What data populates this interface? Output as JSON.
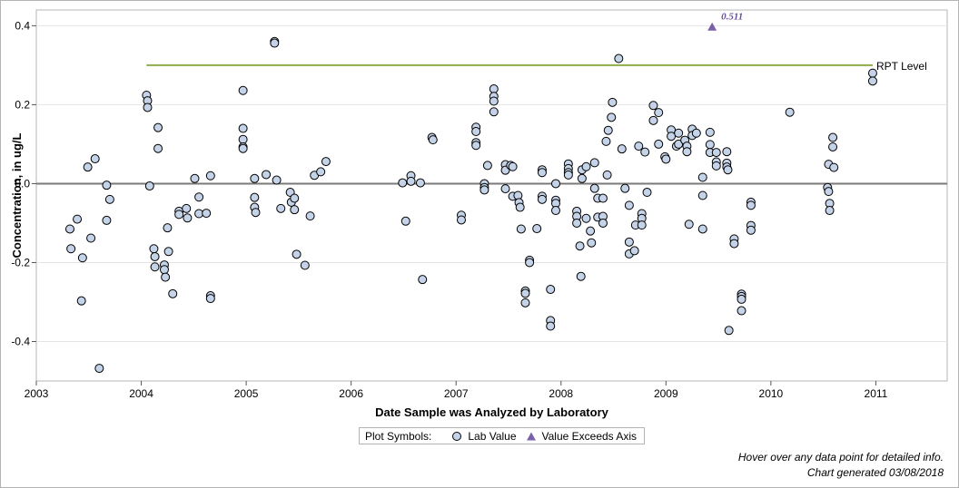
{
  "chart_data": {
    "type": "scatter",
    "title": "",
    "xlabel": "Date Sample was Analyzed by Laboratory",
    "ylabel": "Concentration, in ug/L",
    "xlim": [
      2003.0,
      2011.68
    ],
    "ylim": [
      -0.5,
      0.44
    ],
    "x_ticks": [
      2003,
      2004,
      2005,
      2006,
      2007,
      2008,
      2009,
      2010,
      2011
    ],
    "y_ticks": [
      -0.4,
      -0.2,
      0.0,
      0.2,
      0.4
    ],
    "y_tick_labels": [
      "-0.4",
      "-0.2",
      "0.0",
      "0.2",
      "0.4"
    ],
    "grid": true,
    "zero_line": 0.0,
    "reference_line": {
      "label": "RPT Level",
      "value": 0.3,
      "x_start": 2004.05,
      "x_end": 2010.97,
      "color": "#8fac4a"
    },
    "series": [
      {
        "name": "Lab Value",
        "marker": "circle",
        "color": "#c5d3e8",
        "points": [
          [
            2003.32,
            -0.115
          ],
          [
            2003.33,
            -0.165
          ],
          [
            2003.39,
            -0.09
          ],
          [
            2003.43,
            -0.297
          ],
          [
            2003.44,
            -0.188
          ],
          [
            2003.49,
            0.042
          ],
          [
            2003.52,
            -0.138
          ],
          [
            2003.56,
            0.063
          ],
          [
            2003.6,
            -0.468
          ],
          [
            2003.67,
            -0.093
          ],
          [
            2003.67,
            -0.004
          ],
          [
            2003.7,
            -0.04
          ],
          [
            2004.05,
            0.224
          ],
          [
            2004.06,
            0.21
          ],
          [
            2004.06,
            0.193
          ],
          [
            2004.08,
            -0.006
          ],
          [
            2004.12,
            -0.165
          ],
          [
            2004.13,
            -0.185
          ],
          [
            2004.13,
            -0.211
          ],
          [
            2004.16,
            0.142
          ],
          [
            2004.16,
            0.089
          ],
          [
            2004.22,
            -0.206
          ],
          [
            2004.22,
            -0.218
          ],
          [
            2004.23,
            -0.237
          ],
          [
            2004.25,
            -0.112
          ],
          [
            2004.26,
            -0.172
          ],
          [
            2004.3,
            -0.279
          ],
          [
            2004.36,
            -0.07
          ],
          [
            2004.36,
            -0.078
          ],
          [
            2004.43,
            -0.063
          ],
          [
            2004.44,
            -0.087
          ],
          [
            2004.51,
            0.013
          ],
          [
            2004.55,
            -0.076
          ],
          [
            2004.55,
            -0.034
          ],
          [
            2004.62,
            -0.075
          ],
          [
            2004.66,
            0.02
          ],
          [
            2004.66,
            -0.284
          ],
          [
            2004.66,
            -0.291
          ],
          [
            2004.97,
            0.236
          ],
          [
            2004.97,
            0.14
          ],
          [
            2004.97,
            0.112
          ],
          [
            2004.97,
            0.093
          ],
          [
            2004.97,
            0.089
          ],
          [
            2005.08,
            0.013
          ],
          [
            2005.08,
            -0.035
          ],
          [
            2005.08,
            -0.06
          ],
          [
            2005.09,
            -0.073
          ],
          [
            2005.19,
            0.023
          ],
          [
            2005.27,
            0.36
          ],
          [
            2005.27,
            0.356
          ],
          [
            2005.29,
            0.009
          ],
          [
            2005.33,
            -0.063
          ],
          [
            2005.42,
            -0.022
          ],
          [
            2005.43,
            -0.047
          ],
          [
            2005.46,
            -0.037
          ],
          [
            2005.46,
            -0.066
          ],
          [
            2005.48,
            -0.179
          ],
          [
            2005.56,
            -0.207
          ],
          [
            2005.61,
            -0.082
          ],
          [
            2005.65,
            0.021
          ],
          [
            2005.71,
            0.03
          ],
          [
            2005.76,
            0.056
          ],
          [
            2006.49,
            0.002
          ],
          [
            2006.52,
            -0.095
          ],
          [
            2006.57,
            0.02
          ],
          [
            2006.57,
            0.006
          ],
          [
            2006.66,
            0.002
          ],
          [
            2006.68,
            -0.243
          ],
          [
            2006.77,
            0.117
          ],
          [
            2006.78,
            0.111
          ],
          [
            2007.05,
            -0.08
          ],
          [
            2007.05,
            -0.092
          ],
          [
            2007.19,
            0.143
          ],
          [
            2007.19,
            0.132
          ],
          [
            2007.19,
            0.104
          ],
          [
            2007.19,
            0.097
          ],
          [
            2007.27,
            0.0
          ],
          [
            2007.27,
            -0.01
          ],
          [
            2007.27,
            -0.016
          ],
          [
            2007.3,
            0.046
          ],
          [
            2007.36,
            0.24
          ],
          [
            2007.36,
            0.221
          ],
          [
            2007.36,
            0.209
          ],
          [
            2007.36,
            0.182
          ],
          [
            2007.47,
            -0.013
          ],
          [
            2007.47,
            0.048
          ],
          [
            2007.47,
            0.034
          ],
          [
            2007.52,
            0.046
          ],
          [
            2007.54,
            0.043
          ],
          [
            2007.54,
            -0.032
          ],
          [
            2007.59,
            -0.03
          ],
          [
            2007.6,
            -0.048
          ],
          [
            2007.61,
            -0.06
          ],
          [
            2007.62,
            -0.115
          ],
          [
            2007.66,
            -0.272
          ],
          [
            2007.66,
            -0.278
          ],
          [
            2007.66,
            -0.302
          ],
          [
            2007.7,
            -0.194
          ],
          [
            2007.7,
            -0.2
          ],
          [
            2007.77,
            -0.114
          ],
          [
            2007.82,
            0.035
          ],
          [
            2007.82,
            0.028
          ],
          [
            2007.82,
            -0.032
          ],
          [
            2007.82,
            -0.04
          ],
          [
            2007.9,
            -0.268
          ],
          [
            2007.9,
            -0.347
          ],
          [
            2007.9,
            -0.361
          ],
          [
            2007.95,
            0.0
          ],
          [
            2007.95,
            -0.042
          ],
          [
            2007.95,
            -0.05
          ],
          [
            2007.95,
            -0.068
          ],
          [
            2008.07,
            0.05
          ],
          [
            2008.07,
            0.038
          ],
          [
            2008.07,
            0.028
          ],
          [
            2008.07,
            0.022
          ],
          [
            2008.15,
            -0.07
          ],
          [
            2008.15,
            -0.083
          ],
          [
            2008.15,
            -0.1
          ],
          [
            2008.18,
            -0.158
          ],
          [
            2008.19,
            -0.235
          ],
          [
            2008.2,
            0.035
          ],
          [
            2008.2,
            0.013
          ],
          [
            2008.24,
            0.043
          ],
          [
            2008.24,
            -0.088
          ],
          [
            2008.28,
            -0.12
          ],
          [
            2008.29,
            -0.15
          ],
          [
            2008.32,
            0.053
          ],
          [
            2008.32,
            -0.012
          ],
          [
            2008.35,
            -0.037
          ],
          [
            2008.35,
            -0.085
          ],
          [
            2008.4,
            -0.037
          ],
          [
            2008.4,
            -0.083
          ],
          [
            2008.4,
            -0.1
          ],
          [
            2008.43,
            0.107
          ],
          [
            2008.44,
            0.022
          ],
          [
            2008.45,
            0.135
          ],
          [
            2008.48,
            0.168
          ],
          [
            2008.49,
            0.206
          ],
          [
            2008.55,
            0.317
          ],
          [
            2008.58,
            0.088
          ],
          [
            2008.61,
            -0.012
          ],
          [
            2008.65,
            -0.055
          ],
          [
            2008.65,
            -0.148
          ],
          [
            2008.65,
            -0.178
          ],
          [
            2008.7,
            -0.17
          ],
          [
            2008.71,
            -0.105
          ],
          [
            2008.74,
            0.095
          ],
          [
            2008.77,
            -0.076
          ],
          [
            2008.77,
            -0.088
          ],
          [
            2008.77,
            -0.105
          ],
          [
            2008.8,
            0.08
          ],
          [
            2008.82,
            -0.022
          ],
          [
            2008.88,
            0.198
          ],
          [
            2008.88,
            0.16
          ],
          [
            2008.93,
            0.18
          ],
          [
            2008.93,
            0.1
          ],
          [
            2008.99,
            0.068
          ],
          [
            2009.0,
            0.062
          ],
          [
            2009.05,
            0.136
          ],
          [
            2009.05,
            0.12
          ],
          [
            2009.1,
            0.095
          ],
          [
            2009.12,
            0.128
          ],
          [
            2009.12,
            0.1
          ],
          [
            2009.18,
            0.11
          ],
          [
            2009.2,
            0.095
          ],
          [
            2009.2,
            0.081
          ],
          [
            2009.22,
            -0.103
          ],
          [
            2009.25,
            0.138
          ],
          [
            2009.25,
            0.122
          ],
          [
            2009.29,
            0.128
          ],
          [
            2009.35,
            0.016
          ],
          [
            2009.35,
            -0.03
          ],
          [
            2009.35,
            -0.115
          ],
          [
            2009.42,
            0.13
          ],
          [
            2009.42,
            0.099
          ],
          [
            2009.42,
            0.079
          ],
          [
            2009.48,
            0.079
          ],
          [
            2009.48,
            0.055
          ],
          [
            2009.48,
            0.045
          ],
          [
            2009.58,
            0.081
          ],
          [
            2009.58,
            0.052
          ],
          [
            2009.58,
            0.042
          ],
          [
            2009.59,
            0.035
          ],
          [
            2009.6,
            -0.372
          ],
          [
            2009.65,
            -0.14
          ],
          [
            2009.65,
            -0.152
          ],
          [
            2009.72,
            -0.28
          ],
          [
            2009.72,
            -0.286
          ],
          [
            2009.72,
            -0.293
          ],
          [
            2009.72,
            -0.322
          ],
          [
            2009.81,
            -0.047
          ],
          [
            2009.81,
            -0.055
          ],
          [
            2009.81,
            -0.106
          ],
          [
            2009.81,
            -0.118
          ],
          [
            2010.18,
            0.181
          ],
          [
            2010.54,
            -0.01
          ],
          [
            2010.55,
            0.049
          ],
          [
            2010.55,
            -0.02
          ],
          [
            2010.56,
            -0.05
          ],
          [
            2010.56,
            -0.068
          ],
          [
            2010.59,
            0.117
          ],
          [
            2010.59,
            0.093
          ],
          [
            2010.6,
            0.041
          ],
          [
            2010.97,
            0.28
          ],
          [
            2010.97,
            0.26
          ]
        ]
      },
      {
        "name": "Value Exceeds Axis",
        "marker": "triangle",
        "color": "#7b62a8",
        "points": [
          [
            2009.44,
            0.397
          ]
        ],
        "labels": [
          "0.511"
        ]
      }
    ],
    "legend": {
      "title": "Plot Symbols:",
      "items": [
        {
          "label": "Lab Value",
          "symbol": "circle"
        },
        {
          "label": "Value Exceeds Axis",
          "symbol": "triangle"
        }
      ],
      "placement": "bottom-center"
    }
  },
  "footnote": {
    "hover": "Hover over any data point for detailed info.",
    "generated": "Chart generated 03/08/2018"
  }
}
